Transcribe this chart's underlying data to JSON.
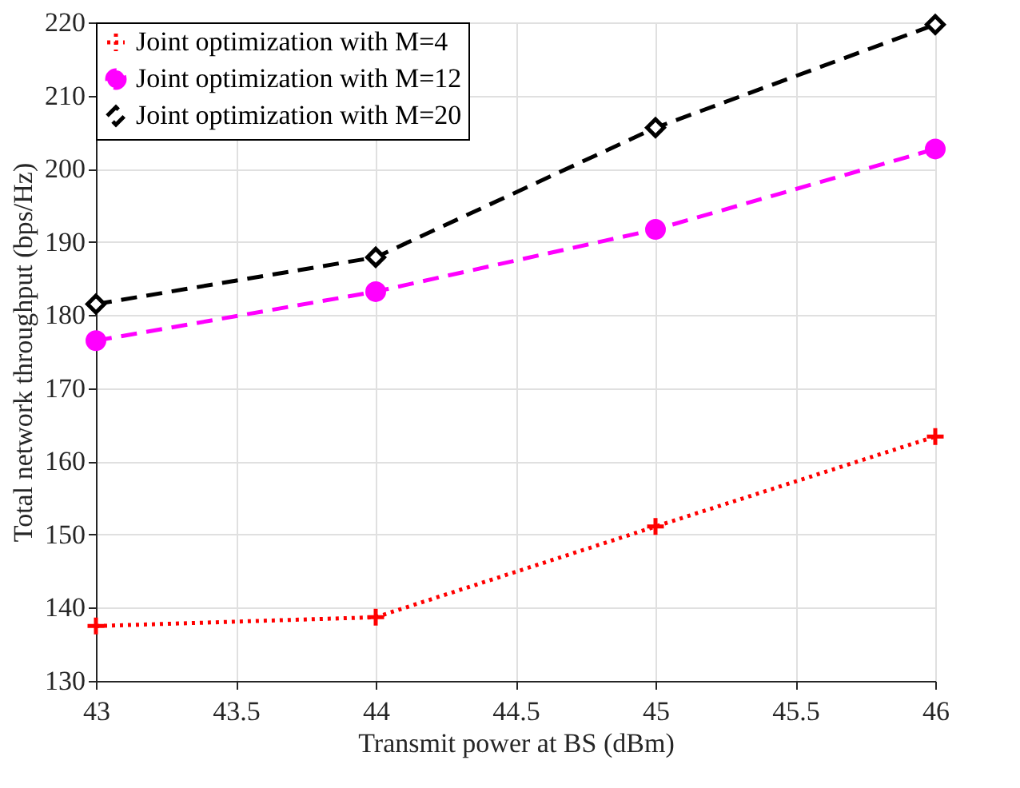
{
  "chart_data": {
    "type": "line",
    "xlabel": "Transmit power at BS (dBm)",
    "ylabel": "Total network throughput (bps/Hz)",
    "x": [
      43,
      44,
      45,
      46
    ],
    "series": [
      {
        "name": "Joint optimization with M=4",
        "color": "#ff0000",
        "values": [
          137.5,
          138.7,
          151.1,
          163.4
        ],
        "marker": "cross",
        "line_style": "dotted"
      },
      {
        "name": "Joint optimization with M=12",
        "color": "#ff00ff",
        "values": [
          176.5,
          183.2,
          191.7,
          202.7
        ],
        "marker": "circle",
        "line_style": "dashed"
      },
      {
        "name": "Joint optimization with M=20",
        "color": "#000000",
        "values": [
          181.5,
          187.9,
          205.6,
          219.7
        ],
        "marker": "diamond",
        "line_style": "dashed"
      }
    ],
    "xlim": [
      43,
      46
    ],
    "xticks": [
      43,
      43.5,
      44,
      44.5,
      45,
      45.5,
      46
    ],
    "ylim": [
      130,
      220
    ],
    "yticks": [
      130,
      140,
      150,
      160,
      170,
      180,
      190,
      200,
      210,
      220
    ],
    "grid": true,
    "legend": "top left"
  }
}
